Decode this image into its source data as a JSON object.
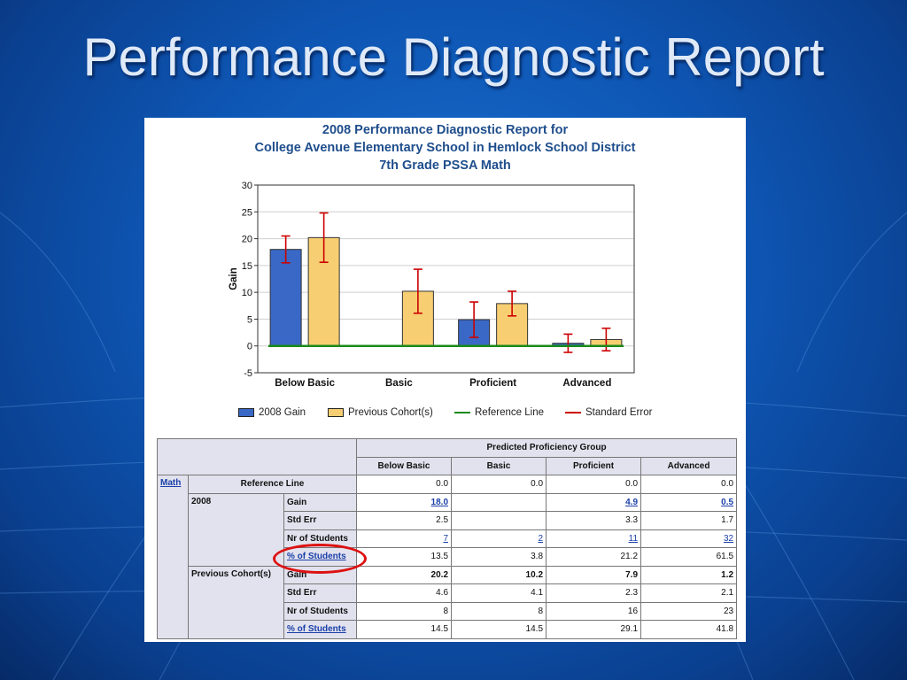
{
  "slide": {
    "title": "Performance Diagnostic Report"
  },
  "report": {
    "title_lines": [
      "2008 Performance Diagnostic Report for",
      "College Avenue Elementary School in Hemlock School District",
      "7th Grade PSSA Math"
    ]
  },
  "colors": {
    "gain_2008": "#3a68c6",
    "previous": "#f7cf72",
    "reference": "#1a8a1a",
    "error": "#cc0000"
  },
  "chart_data": {
    "type": "bar",
    "categories": [
      "Below Basic",
      "Basic",
      "Proficient",
      "Advanced"
    ],
    "ylabel": "Gain",
    "ylim": [
      -5,
      30
    ],
    "yticks": [
      -5,
      0,
      5,
      10,
      15,
      20,
      25,
      30
    ],
    "grid": true,
    "legend_position": "bottom",
    "series": [
      {
        "name": "2008 Gain",
        "values": [
          18.0,
          null,
          4.9,
          0.5
        ],
        "err_low": [
          15.5,
          null,
          1.6,
          -1.2
        ],
        "err_high": [
          20.5,
          null,
          8.2,
          2.2
        ]
      },
      {
        "name": "Previous Cohort(s)",
        "values": [
          20.2,
          10.2,
          7.9,
          1.2
        ],
        "err_low": [
          15.6,
          6.1,
          5.6,
          -0.9
        ],
        "err_high": [
          24.8,
          14.3,
          10.2,
          3.3
        ]
      }
    ],
    "reference_line": 0.0,
    "legend": [
      "2008 Gain",
      "Previous Cohort(s)",
      "Reference Line",
      "Standard Error"
    ]
  },
  "table": {
    "group_header": "Predicted Proficiency Group",
    "columns": [
      "Below Basic",
      "Basic",
      "Proficient",
      "Advanced"
    ],
    "subject": "Math",
    "reference": {
      "label": "Reference Line",
      "values": [
        "0.0",
        "0.0",
        "0.0",
        "0.0"
      ]
    },
    "y2008": {
      "label": "2008",
      "gain": {
        "label": "Gain",
        "values": [
          "18.0",
          "",
          "4.9",
          "0.5"
        ]
      },
      "stderr": {
        "label": "Std Err",
        "values": [
          "2.5",
          "",
          "3.3",
          "1.7"
        ]
      },
      "nr": {
        "label": "Nr of Students",
        "values": [
          "7",
          "2",
          "11",
          "32"
        ]
      },
      "pct": {
        "label": "% of Students",
        "values": [
          "13.5",
          "3.8",
          "21.2",
          "61.5"
        ]
      }
    },
    "prev": {
      "label": "Previous Cohort(s)",
      "gain": {
        "label": "Gain",
        "values": [
          "20.2",
          "10.2",
          "7.9",
          "1.2"
        ]
      },
      "stderr": {
        "label": "Std Err",
        "values": [
          "4.6",
          "4.1",
          "2.3",
          "2.1"
        ]
      },
      "nr": {
        "label": "Nr of Students",
        "values": [
          "8",
          "8",
          "16",
          "23"
        ]
      },
      "pct": {
        "label": "% of Students",
        "values": [
          "14.5",
          "14.5",
          "29.1",
          "41.8"
        ]
      }
    }
  }
}
